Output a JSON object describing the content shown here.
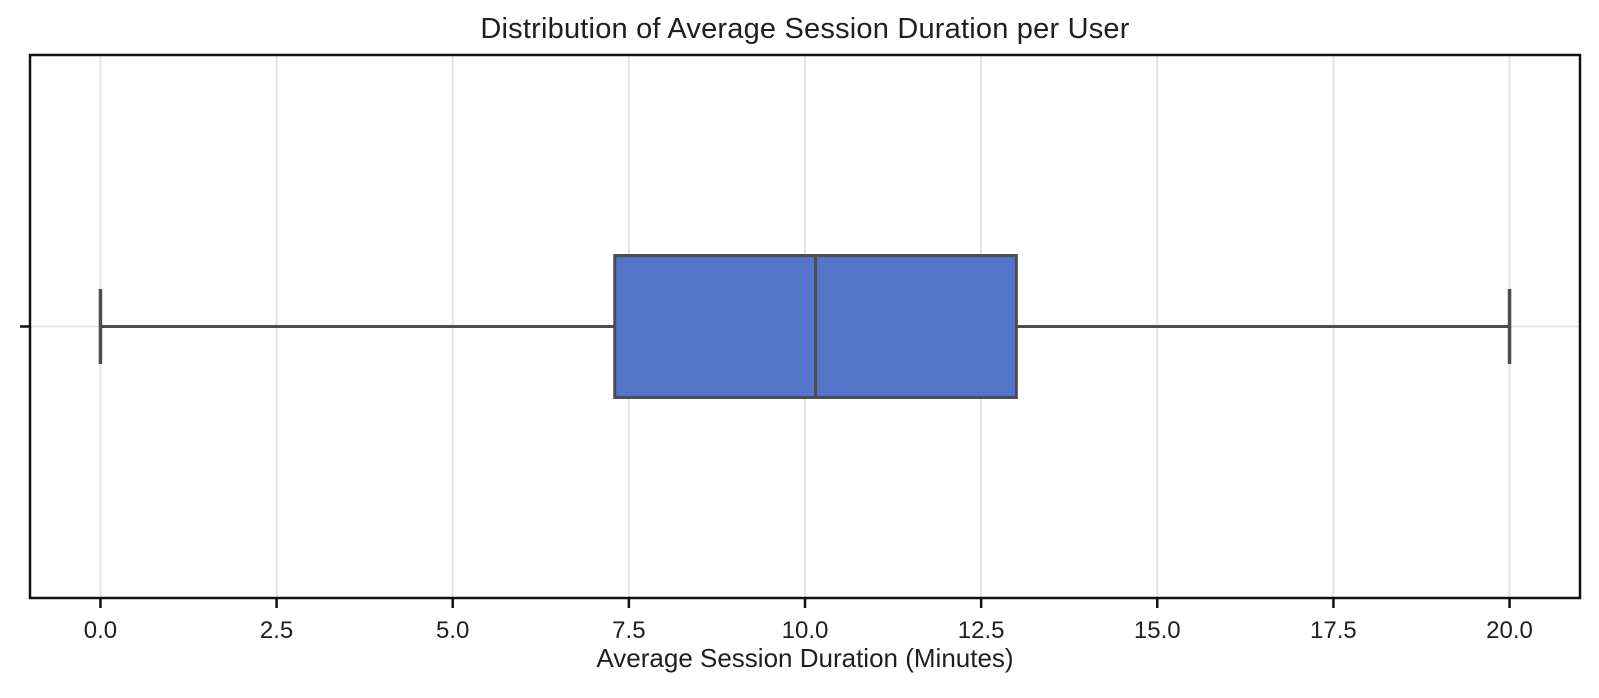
{
  "chart_data": {
    "type": "box",
    "orientation": "horizontal",
    "title": "Distribution of Average Session Duration per User",
    "xlabel": "Average Session Duration (Minutes)",
    "series": [
      {
        "name": "Average Session Duration",
        "stats": {
          "whisker_low": 0.0,
          "q1": 7.3,
          "median": 10.15,
          "q3": 13.0,
          "whisker_high": 20.0
        }
      }
    ],
    "xlim": [
      -1,
      21
    ],
    "xticks": [
      0.0,
      2.5,
      5.0,
      7.5,
      10.0,
      12.5,
      15.0,
      17.5,
      20.0
    ],
    "xtick_labels": [
      "0.0",
      "2.5",
      "5.0",
      "7.5",
      "10.0",
      "12.5",
      "15.0",
      "17.5",
      "20.0"
    ],
    "ytick_labels": [
      ""
    ],
    "grid": true,
    "legend": "none",
    "colors": {
      "box_fill": "#5474CA",
      "box_edge": "#4D4D4D",
      "whisker": "#4D4D4D",
      "median": "#4D4D4D",
      "grid": "#E4E4E4",
      "frame": "#111111",
      "tick": "#111111",
      "text": "#1F1F1F"
    }
  }
}
